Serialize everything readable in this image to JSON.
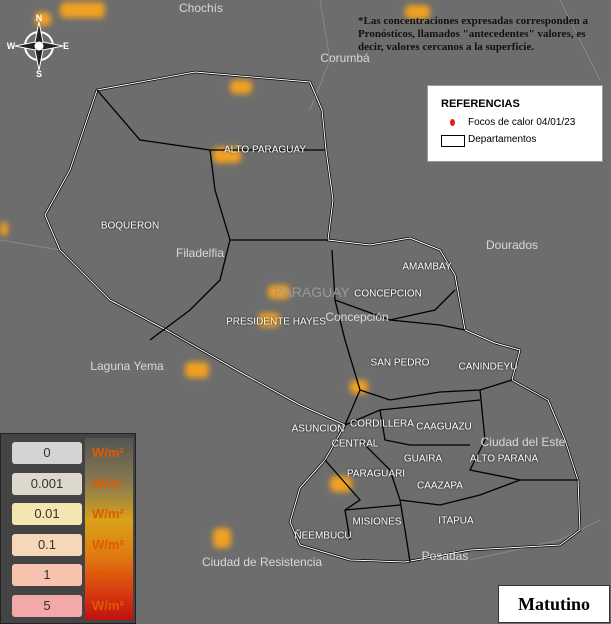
{
  "note": "*Las concentraciones expresadas corresponden a Pronósticos, llamados \"antecedentes\" valores, es decir, valores cercanos a la superficie.",
  "references": {
    "title": "REFERENCIAS",
    "items": [
      "Focos de calor 04/01/23",
      "Departamentos"
    ]
  },
  "scale": {
    "unit": "W/m²",
    "values": [
      0,
      0.001,
      0.01,
      0.1,
      1,
      5
    ]
  },
  "compass": [
    "N",
    "S",
    "E",
    "W"
  ],
  "departments": [
    "BOQUERON",
    "ALTO PARAGUAY",
    "PRESIDENTE HAYES",
    "CONCEPCION",
    "AMAMBAY",
    "SAN PEDRO",
    "CANINDEYU",
    "CORDILLERA",
    "CAAGUAZU",
    "CENTRAL",
    "ASUNCION",
    "GUAIRA",
    "ALTO PARANA",
    "PARAGUARI",
    "CAAZAPA",
    "MISIONES",
    "ITAPUA",
    "ÑEEMBUCU"
  ],
  "places": [
    "Chochís",
    "Corumbá",
    "Dourados",
    "Filadelfia",
    "Concepción",
    "PARAGUAY",
    "Laguna Yema",
    "Ciudad del Este",
    "Ciudad de Resistencia",
    "Posadas"
  ],
  "period": "Matutino"
}
